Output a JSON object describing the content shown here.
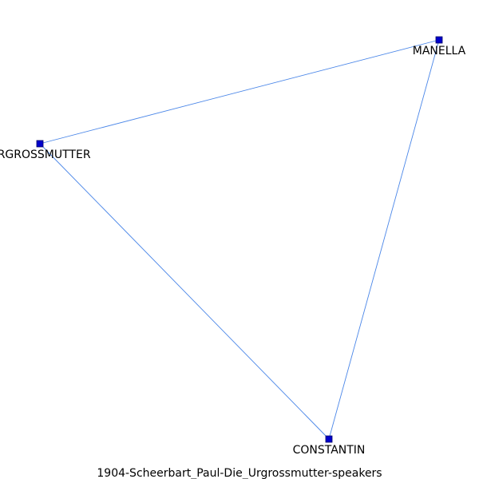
{
  "graph": {
    "caption": "1904-Scheerbart_Paul-Die_Urgrossmutter-speakers",
    "node_color": "#0000cc",
    "node_border_color": "#000066",
    "edge_color": "#4a86e8",
    "nodes": [
      {
        "id": "manella",
        "label": "MANELLA"
      },
      {
        "id": "urgrossmutter",
        "label": "URGROSSMUTTER"
      },
      {
        "id": "constantin",
        "label": "CONSTANTIN"
      }
    ],
    "edges": [
      {
        "source": "urgrossmutter",
        "target": "manella"
      },
      {
        "source": "manella",
        "target": "constantin"
      },
      {
        "source": "urgrossmutter",
        "target": "constantin"
      }
    ]
  }
}
